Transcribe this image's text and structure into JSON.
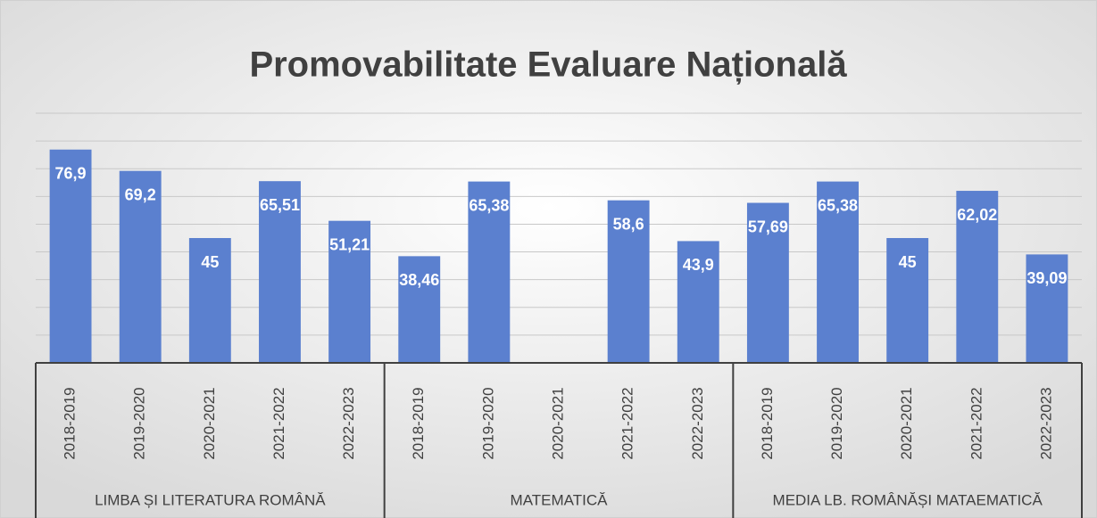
{
  "chart_data": {
    "type": "bar",
    "title": "Promovabilitate Evaluare Națională",
    "groups": [
      "LIMBA ȘI LITERATURA ROMÂNĂ",
      "MATEMATICĂ",
      "MEDIA LB. ROMÂNĂȘI MATAEMATICĂ"
    ],
    "categories": [
      "2018-2019",
      "2019-2020",
      "2020-2021",
      "2021-2022",
      "2022-2023",
      "2018-2019",
      "2019-2020",
      "2020-2021",
      "2021-2022",
      "2022-2023",
      "2018-2019",
      "2019-2020",
      "2020-2021",
      "2021-2022",
      "2022-2023"
    ],
    "values": [
      76.9,
      69.2,
      45,
      65.51,
      51.21,
      38.46,
      65.38,
      null,
      58.6,
      43.9,
      57.69,
      65.38,
      45,
      62.02,
      39.09
    ],
    "value_labels": [
      "76,9",
      "69,2",
      "45",
      "65,51",
      "51,21",
      "38,46",
      "65,38",
      null,
      "58,6",
      "43,9",
      "57,69",
      "65,38",
      "45",
      "62,02",
      "39,09"
    ],
    "color": "#5b80cf",
    "ylim": [
      0,
      90
    ],
    "yticks": [
      0,
      10,
      20,
      30,
      40,
      50,
      60,
      70,
      80,
      90
    ],
    "grid": true
  }
}
